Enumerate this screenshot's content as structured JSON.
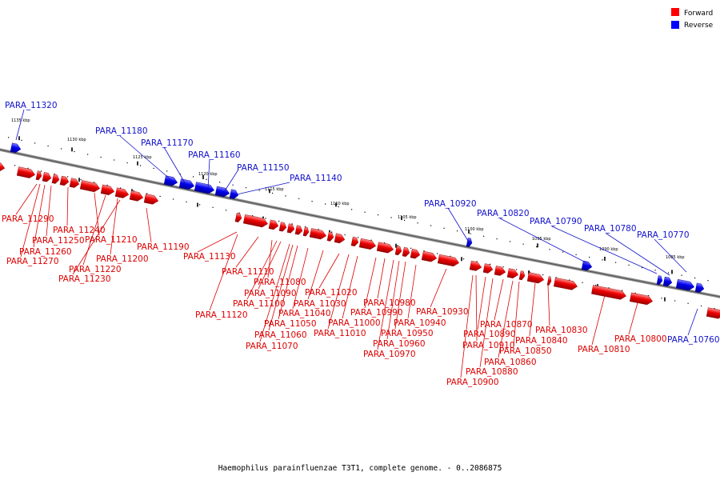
{
  "legend": {
    "forward": {
      "label": "Forward",
      "color": "#ff0000"
    },
    "reverse": {
      "label": "Reverse",
      "color": "#0000ff"
    }
  },
  "caption": "Haemophilus parainfluenzae T3T1, complete genome. - 0..2086875",
  "ticks": [
    "1135 kbp",
    "1130 kbp",
    "1125 kbp",
    "1120 kbp",
    "1115 kbp",
    "1110 kbp",
    "1105 kbp",
    "1100 kbp",
    "1095 kbp",
    "1090 kbp",
    "1085 kbp"
  ],
  "genes_forward": [
    "PARA_11290",
    "PARA_11240",
    "PARA_11250",
    "PARA_11260",
    "PARA_11270",
    "PARA_11210",
    "PARA_11220",
    "PARA_11200",
    "PARA_11230",
    "PARA_11190",
    "PARA_11130",
    "PARA_11110",
    "PARA_11080",
    "PARA_11090",
    "PARA_11100",
    "PARA_11120",
    "PARA_11050",
    "PARA_11060",
    "PARA_11070",
    "PARA_11040",
    "PARA_11030",
    "PARA_11020",
    "PARA_11000",
    "PARA_11010",
    "PARA_10980",
    "PARA_10990",
    "PARA_10950",
    "PARA_10960",
    "PARA_10970",
    "PARA_10940",
    "PARA_10930",
    "PARA_10910",
    "PARA_10890",
    "PARA_10880",
    "PARA_10900",
    "PARA_10870",
    "PARA_10860",
    "PARA_10850",
    "PARA_10840",
    "PARA_10830",
    "PARA_10810",
    "PARA_10800"
  ],
  "genes_reverse": [
    "PARA_11320",
    "PARA_11180",
    "PARA_11170",
    "PARA_11160",
    "PARA_11150",
    "PARA_11140",
    "PARA_10920",
    "PARA_10820",
    "PARA_10790",
    "PARA_10780",
    "PARA_10770",
    "PARA_10760"
  ]
}
